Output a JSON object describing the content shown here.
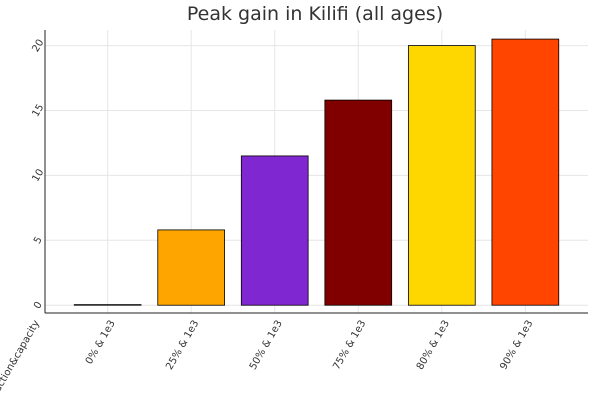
{
  "chart_data": {
    "type": "bar",
    "title": "Peak gain in Kilifi (all ages)",
    "xlabel": "",
    "ylabel": "",
    "categories": [
      "0% & 1e3",
      "25% & 1e3",
      "50% & 1e3",
      "75% & 1e3",
      "80% & 1e3",
      "90% & 1e3"
    ],
    "values": [
      0.0,
      5.8,
      11.5,
      15.8,
      20.0,
      20.5
    ],
    "colors": [
      "#f0f0f0",
      "#ffa500",
      "#7f27d0",
      "#800000",
      "#ffd700",
      "#ff4500"
    ],
    "ylim": [
      -0.6,
      21.2
    ],
    "yticks": [
      0,
      5,
      10,
      15,
      20
    ],
    "ytick_labels": [
      "0",
      "5",
      "10",
      "15",
      "20"
    ],
    "corner_tick_label": "reduction&capacity",
    "grid": true,
    "legend": "none"
  }
}
